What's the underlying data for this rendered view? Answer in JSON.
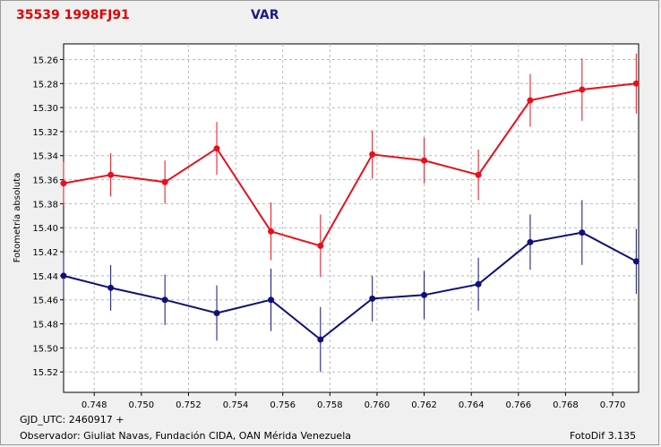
{
  "header": {
    "object_title": "35539 1998FJ91",
    "var_label": "VAR"
  },
  "footer": {
    "gjd": "GJD_UTC: 2460917 +",
    "observer": "Observador: Giuliat Navas, Fundación CIDA, OAN Mérida Venezuela",
    "software": "FotoDif 3.135"
  },
  "colors": {
    "series_red": "#e8101a",
    "series_blue": "#10107a",
    "grid": "#b8b8b8"
  },
  "chart_data": {
    "type": "scatter",
    "title": "35539 1998FJ91",
    "xlabel": "",
    "ylabel": "Fotometría absoluta",
    "xlim": [
      0.7467,
      0.7711
    ],
    "ylim": [
      15.537,
      15.247
    ],
    "y_inverted": true,
    "grid": true,
    "x_ticks": [
      "0.748",
      "0.750",
      "0.752",
      "0.754",
      "0.756",
      "0.758",
      "0.760",
      "0.762",
      "0.764",
      "0.766",
      "0.768",
      "0.770"
    ],
    "y_ticks": [
      "15.26",
      "15.28",
      "15.30",
      "15.32",
      "15.34",
      "15.36",
      "15.38",
      "15.40",
      "15.42",
      "15.44",
      "15.46",
      "15.48",
      "15.50",
      "15.52"
    ],
    "x": [
      0.7467,
      0.7487,
      0.751,
      0.7532,
      0.7555,
      0.7576,
      0.7598,
      0.762,
      0.7643,
      0.7665,
      0.7687,
      0.771
    ],
    "series": [
      {
        "values": [
          15.363,
          15.356,
          15.362,
          15.334,
          15.403,
          15.415,
          15.339,
          15.344,
          15.356,
          15.294,
          15.285,
          15.28
        ],
        "errors": [
          0.018,
          0.018,
          0.018,
          0.022,
          0.024,
          0.026,
          0.02,
          0.019,
          0.021,
          0.022,
          0.026,
          0.025
        ],
        "color": "#e8101a"
      },
      {
        "values": [
          15.44,
          15.45,
          15.46,
          15.471,
          15.46,
          15.493,
          15.459,
          15.456,
          15.447,
          15.412,
          15.404,
          15.428
        ],
        "errors": [
          0.018,
          0.019,
          0.021,
          0.023,
          0.026,
          0.027,
          0.019,
          0.02,
          0.022,
          0.023,
          0.027,
          0.027
        ],
        "color": "#10107a"
      }
    ]
  }
}
